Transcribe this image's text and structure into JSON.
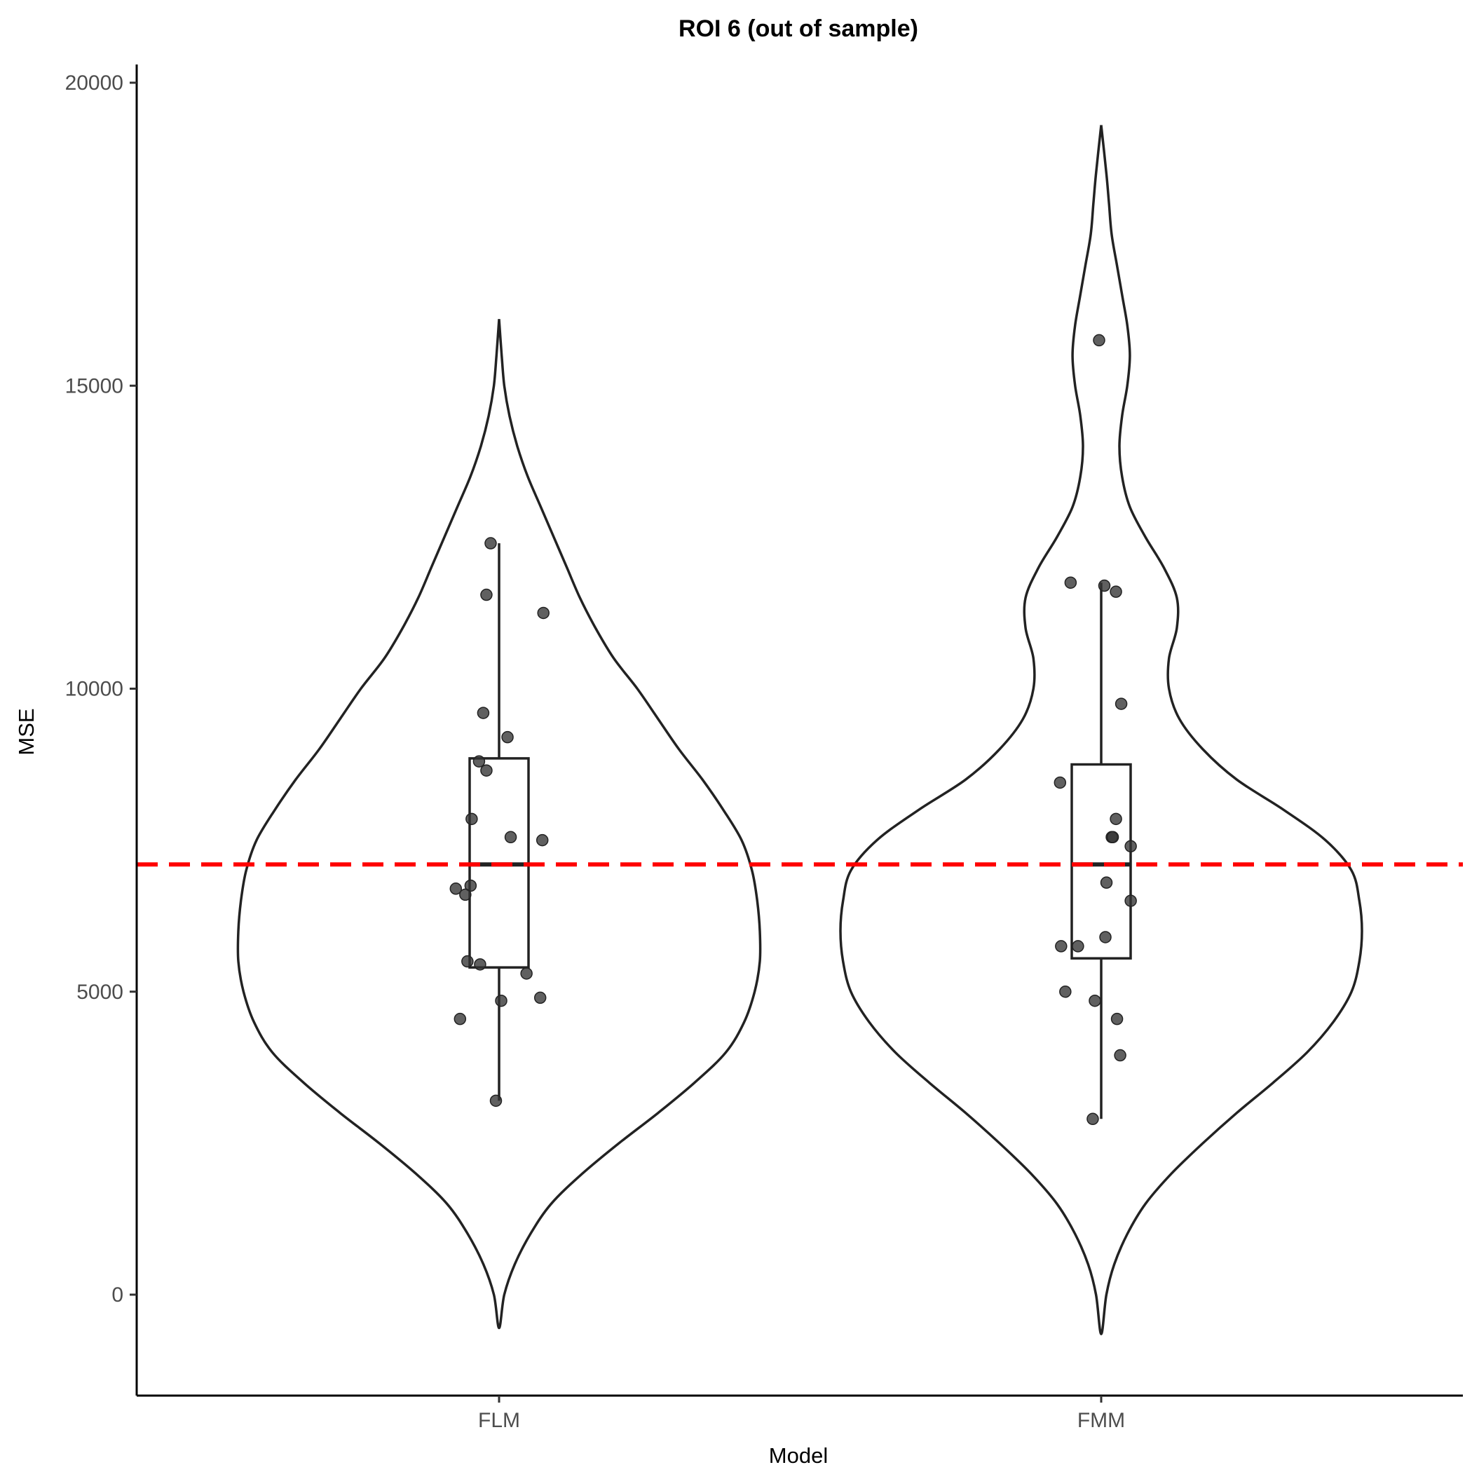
{
  "chart_data": {
    "type": "violin",
    "title": "ROI  6 (out of sample)",
    "xlabel": "Model",
    "ylabel": "MSE",
    "categories": [
      "FLM",
      "FMM"
    ],
    "y_ticks": [
      0,
      5000,
      10000,
      15000,
      20000
    ],
    "ylim": [
      -1500,
      20300
    ],
    "reference_line": {
      "value": 7100,
      "color": "#ff0000",
      "style": "dashed"
    },
    "series": [
      {
        "category": "FLM",
        "box": {
          "whisker_low": 3200,
          "q1": 5400,
          "median": 7100,
          "q3": 8850,
          "whisker_high": 12400
        },
        "violin_range": [
          -550,
          16100
        ],
        "density": [
          [
            -550,
            0.0
          ],
          [
            0,
            0.02
          ],
          [
            500,
            0.06
          ],
          [
            1000,
            0.12
          ],
          [
            1500,
            0.2
          ],
          [
            2000,
            0.32
          ],
          [
            2500,
            0.46
          ],
          [
            3000,
            0.61
          ],
          [
            3500,
            0.75
          ],
          [
            4000,
            0.87
          ],
          [
            4500,
            0.94
          ],
          [
            5000,
            0.98
          ],
          [
            5500,
            1.0
          ],
          [
            6000,
            1.0
          ],
          [
            6500,
            0.99
          ],
          [
            7000,
            0.97
          ],
          [
            7500,
            0.93
          ],
          [
            8000,
            0.86
          ],
          [
            8500,
            0.78
          ],
          [
            9000,
            0.69
          ],
          [
            9500,
            0.61
          ],
          [
            10000,
            0.53
          ],
          [
            10500,
            0.44
          ],
          [
            11000,
            0.37
          ],
          [
            11500,
            0.31
          ],
          [
            12000,
            0.26
          ],
          [
            12500,
            0.21
          ],
          [
            13000,
            0.16
          ],
          [
            13500,
            0.11
          ],
          [
            14000,
            0.07
          ],
          [
            14500,
            0.04
          ],
          [
            15000,
            0.02
          ],
          [
            15500,
            0.01
          ],
          [
            16100,
            0.0
          ]
        ],
        "points": [
          {
            "x": -0.08,
            "y": 12400
          },
          {
            "x": -0.12,
            "y": 11550
          },
          {
            "x": 0.42,
            "y": 11250
          },
          {
            "x": -0.15,
            "y": 9600
          },
          {
            "x": 0.08,
            "y": 9200
          },
          {
            "x": -0.19,
            "y": 8800
          },
          {
            "x": -0.12,
            "y": 8650
          },
          {
            "x": -0.26,
            "y": 7850
          },
          {
            "x": 0.11,
            "y": 7550
          },
          {
            "x": 0.41,
            "y": 7500
          },
          {
            "x": -0.41,
            "y": 6700
          },
          {
            "x": -0.27,
            "y": 6750
          },
          {
            "x": -0.32,
            "y": 6600
          },
          {
            "x": -0.3,
            "y": 5500
          },
          {
            "x": -0.18,
            "y": 5450
          },
          {
            "x": 0.26,
            "y": 5300
          },
          {
            "x": 0.02,
            "y": 4850
          },
          {
            "x": 0.39,
            "y": 4900
          },
          {
            "x": -0.37,
            "y": 4550
          },
          {
            "x": -0.03,
            "y": 3200
          }
        ]
      },
      {
        "category": "FMM",
        "box": {
          "whisker_low": 2900,
          "q1": 5550,
          "median": 7100,
          "q3": 8750,
          "whisker_high": 11750
        },
        "violin_range": [
          -650,
          19300
        ],
        "density": [
          [
            -650,
            0.0
          ],
          [
            0,
            0.02
          ],
          [
            500,
            0.05
          ],
          [
            1000,
            0.1
          ],
          [
            1500,
            0.17
          ],
          [
            2000,
            0.27
          ],
          [
            2500,
            0.39
          ],
          [
            3000,
            0.52
          ],
          [
            3500,
            0.66
          ],
          [
            4000,
            0.79
          ],
          [
            4500,
            0.89
          ],
          [
            5000,
            0.96
          ],
          [
            5500,
            0.99
          ],
          [
            6000,
            1.0
          ],
          [
            6500,
            0.99
          ],
          [
            7000,
            0.96
          ],
          [
            7500,
            0.86
          ],
          [
            8000,
            0.7
          ],
          [
            8500,
            0.52
          ],
          [
            9000,
            0.39
          ],
          [
            9500,
            0.3
          ],
          [
            10000,
            0.26
          ],
          [
            10500,
            0.26
          ],
          [
            11000,
            0.29
          ],
          [
            11500,
            0.29
          ],
          [
            12000,
            0.24
          ],
          [
            12500,
            0.17
          ],
          [
            13000,
            0.11
          ],
          [
            13500,
            0.08
          ],
          [
            14000,
            0.07
          ],
          [
            14500,
            0.08
          ],
          [
            15000,
            0.1
          ],
          [
            15500,
            0.11
          ],
          [
            16000,
            0.1
          ],
          [
            16500,
            0.08
          ],
          [
            17000,
            0.06
          ],
          [
            17500,
            0.04
          ],
          [
            18000,
            0.03
          ],
          [
            18500,
            0.02
          ],
          [
            19300,
            0.0
          ]
        ],
        "points": [
          {
            "x": -0.02,
            "y": 15750
          },
          {
            "x": -0.29,
            "y": 11750
          },
          {
            "x": 0.03,
            "y": 11700
          },
          {
            "x": 0.14,
            "y": 11600
          },
          {
            "x": 0.19,
            "y": 9750
          },
          {
            "x": -0.39,
            "y": 8450
          },
          {
            "x": 0.14,
            "y": 7850
          },
          {
            "x": 0.1,
            "y": 7550
          },
          {
            "x": 0.11,
            "y": 7550
          },
          {
            "x": 0.28,
            "y": 7400
          },
          {
            "x": 0.05,
            "y": 6800
          },
          {
            "x": 0.28,
            "y": 6500
          },
          {
            "x": 0.04,
            "y": 5900
          },
          {
            "x": -0.38,
            "y": 5750
          },
          {
            "x": -0.22,
            "y": 5750
          },
          {
            "x": -0.34,
            "y": 5000
          },
          {
            "x": -0.06,
            "y": 4850
          },
          {
            "x": 0.15,
            "y": 4550
          },
          {
            "x": 0.18,
            "y": 3950
          },
          {
            "x": -0.08,
            "y": 2900
          }
        ]
      }
    ]
  }
}
